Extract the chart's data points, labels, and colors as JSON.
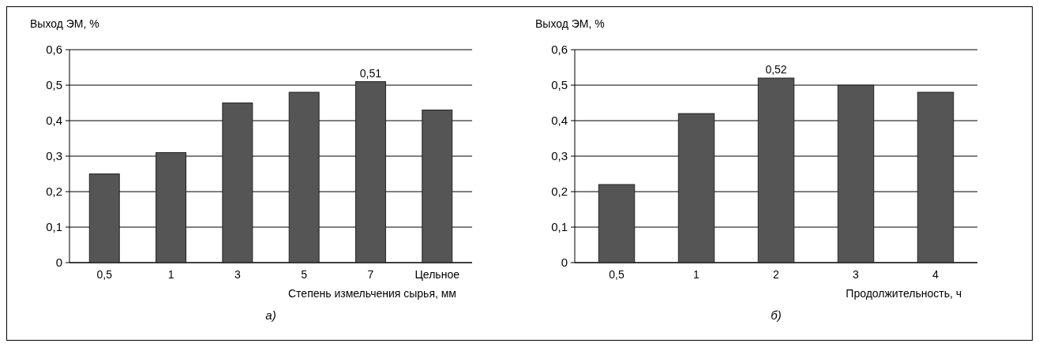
{
  "chart_data": [
    {
      "type": "bar",
      "ylabel": "Выход ЭМ, %",
      "xlabel": "Степень измельчения сырья, мм",
      "categories": [
        "0,5",
        "1",
        "3",
        "5",
        "7",
        "Цельное"
      ],
      "values": [
        0.25,
        0.31,
        0.45,
        0.48,
        0.51,
        0.43
      ],
      "value_labels": [
        null,
        null,
        null,
        null,
        "0,51",
        null
      ],
      "color": "#555555",
      "ylim": [
        0,
        0.6
      ],
      "yticks": [
        {
          "value": 0,
          "label": "0"
        },
        {
          "value": 0.1,
          "label": "0,1"
        },
        {
          "value": 0.2,
          "label": "0,2"
        },
        {
          "value": 0.3,
          "label": "0,3"
        },
        {
          "value": 0.4,
          "label": "0,4"
        },
        {
          "value": 0.5,
          "label": "0,5"
        },
        {
          "value": 0.6,
          "label": "0,6"
        }
      ],
      "grid": "y",
      "annotations": [
        "а)"
      ]
    },
    {
      "type": "bar",
      "ylabel": "Выход ЭМ, %",
      "xlabel": "Продолжительность, ч",
      "categories": [
        "0,5",
        "1",
        "2",
        "3",
        "4"
      ],
      "values": [
        0.22,
        0.42,
        0.52,
        0.5,
        0.48
      ],
      "value_labels": [
        null,
        null,
        "0,52",
        null,
        null
      ],
      "color": "#555555",
      "ylim": [
        0,
        0.6
      ],
      "yticks": [
        {
          "value": 0,
          "label": "0"
        },
        {
          "value": 0.1,
          "label": "0,1"
        },
        {
          "value": 0.2,
          "label": "0,2"
        },
        {
          "value": 0.3,
          "label": "0,3"
        },
        {
          "value": 0.4,
          "label": "0,4"
        },
        {
          "value": 0.5,
          "label": "0,5"
        },
        {
          "value": 0.6,
          "label": "0,6"
        }
      ],
      "grid": "y",
      "annotations": [
        "б)"
      ]
    }
  ]
}
